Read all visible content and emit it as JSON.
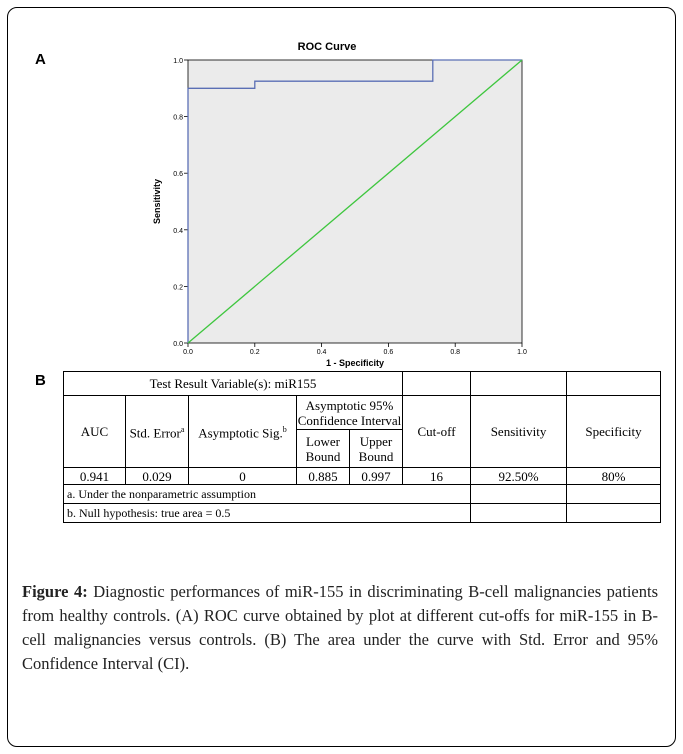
{
  "panel_a_label": "A",
  "panel_b_label": "B",
  "chart_data": {
    "type": "line",
    "title": "ROC Curve",
    "xlabel": "1 - Specificity",
    "ylabel": "Sensitivity",
    "xlim": [
      0,
      1
    ],
    "ylim": [
      0,
      1
    ],
    "xticks": [
      "0.0",
      "0.2",
      "0.4",
      "0.6",
      "0.8",
      "1.0"
    ],
    "yticks": [
      "0.0",
      "0.2",
      "0.4",
      "0.6",
      "0.8",
      "1.0"
    ],
    "grid": false,
    "background": "#ebebeb",
    "series": [
      {
        "color": "#5b6fb5",
        "x": [
          0,
          0,
          0.2,
          0.2,
          0.733,
          0.733,
          1.0
        ],
        "y": [
          0,
          0.9,
          0.9,
          0.925,
          0.925,
          1.0,
          1.0
        ]
      },
      {
        "color": "#3ec63e",
        "x": [
          0,
          1
        ],
        "y": [
          0,
          1
        ]
      }
    ]
  },
  "table": {
    "title": "Test Result Variable(s):  miR155",
    "headers": {
      "auc": "AUC",
      "std_error": "Std. Error",
      "std_error_sup": "a",
      "asym_sig": "Asymptotic Sig.",
      "asym_sig_sup": "b",
      "ci": "Asymptotic 95% Confidence Interval",
      "lower": "Lower Bound",
      "upper": "Upper Bound",
      "cutoff": "Cut-off",
      "sensitivity": "Sensitivity",
      "specificity": "Specificity"
    },
    "row": {
      "auc": "0.941",
      "std_error": "0.029",
      "asym_sig": "0",
      "lower": "0.885",
      "upper": "0.997",
      "cutoff": "16",
      "sensitivity": "92.50%",
      "specificity": "80%"
    },
    "notes": [
      "a. Under the nonparametric assumption",
      "b. Null hypothesis: true area = 0.5"
    ]
  },
  "caption": {
    "label": "Figure 4:",
    "text": " Diagnostic performances of miR-155 in discriminating B-cell malignancies patients from healthy controls. (A) ROC curve obtained by plot at different cut-offs for miR-155 in B-cell malignancies versus controls. (B) The area under the curve with Std. Error and 95% Confidence Interval (CI)."
  }
}
